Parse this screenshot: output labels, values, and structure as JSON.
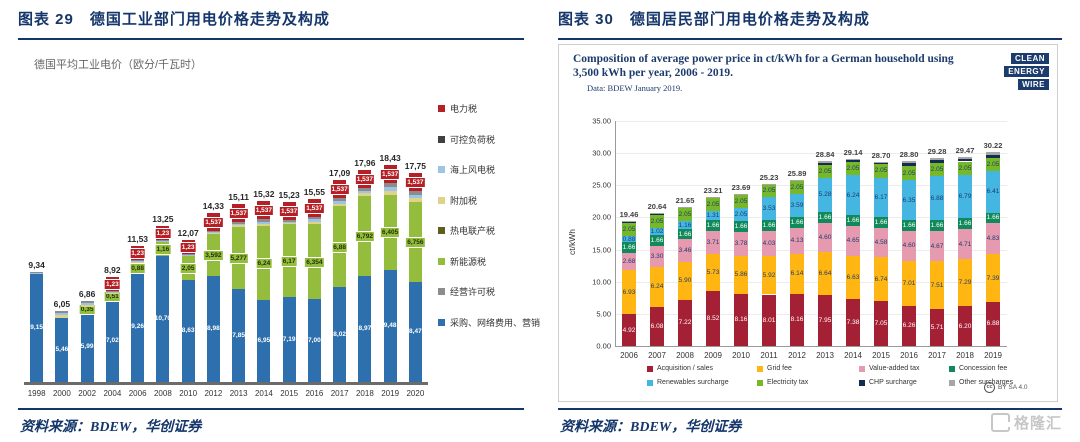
{
  "left_figure": {
    "header": "图表 29　德国工业部门用电价格走势及构成",
    "source": "资料来源：BDEW，华创证券",
    "legend": [
      {
        "label": "电力税",
        "color": "#b42025"
      },
      {
        "label": "可控负荷税",
        "color": "#404040"
      },
      {
        "label": "海上风电税",
        "color": "#9dc3e6"
      },
      {
        "label": "附加税",
        "color": "#ded489"
      },
      {
        "label": "热电联产税",
        "color": "#5f5f1d"
      },
      {
        "label": "新能源税",
        "color": "#94bd3d"
      },
      {
        "label": "经营许可税",
        "color": "#8c8c8c"
      },
      {
        "label": "采购、网络费用、营销",
        "color": "#2e6fad"
      }
    ]
  },
  "right_figure": {
    "header": "图表 30　德国居民部门用电价格走势及构成",
    "source": "资料来源：BDEW，华创证券",
    "logo_lines": [
      "CLEAN",
      "ENERGY",
      "WIRE"
    ],
    "license": "BY SA 4.0",
    "watermark": "格隆汇",
    "legend": [
      {
        "label": "Acquisition / sales",
        "color": "#a32035"
      },
      {
        "label": "Grid fee",
        "color": "#ffb612"
      },
      {
        "label": "Value-added tax",
        "color": "#e59ab0"
      },
      {
        "label": "Concession fee",
        "color": "#108a5a"
      },
      {
        "label": "Renewables surcharge",
        "color": "#45b5e2"
      },
      {
        "label": "Electricity tax",
        "color": "#77b82a"
      },
      {
        "label": "CHP surcharge",
        "color": "#132c54"
      },
      {
        "label": "Other surcharges",
        "color": "#a6a6a6"
      }
    ]
  },
  "chart_data": [
    {
      "type": "bar",
      "stacked": true,
      "title": "德国平均工业电价（欧分/千瓦时）",
      "categories": [
        "1998",
        "2000",
        "2002",
        "2004",
        "2006",
        "2008",
        "2010",
        "2012",
        "2013",
        "2014",
        "2015",
        "2016",
        "2017",
        "2018",
        "2019",
        "2020"
      ],
      "totals": [
        9.34,
        6.05,
        6.86,
        8.92,
        11.53,
        13.25,
        12.07,
        14.33,
        15.11,
        15.32,
        15.23,
        15.55,
        17.09,
        17.96,
        18.43,
        17.75
      ],
      "total_labels": [
        "9,34",
        "6,05",
        "6,86",
        "8,92",
        "11,53",
        "13,25",
        "12,07",
        "14,33",
        "15,11",
        "15,32",
        "15,23",
        "15,55",
        "17,09",
        "17,96",
        "18,43",
        "17,75"
      ],
      "ylim": [
        0,
        19
      ],
      "grid": false,
      "legend_position": "right",
      "series": [
        {
          "name": "采购、网络费用、营销",
          "color": "#2e6fad",
          "label_color": "#ffffff",
          "boxed": false,
          "values": [
            9.15,
            5.46,
            5.99,
            7.02,
            9.26,
            10.7,
            8.63,
            8.98,
            7.85,
            6.95,
            7.19,
            7.0,
            8.02,
            8.97,
            9.48,
            8.47
          ],
          "labels": [
            "9,15",
            "5,46",
            "5,99",
            "7,02",
            "9,26",
            "10,70",
            "8,63",
            "8,98",
            "7,85",
            "6,95",
            "7,19",
            "7,00",
            "8,02",
            "8,97",
            "9,48",
            "8,47"
          ]
        },
        {
          "name": "新能源税",
          "color": "#94bd3d",
          "label_color": "#1f3000",
          "boxed": true,
          "values": [
            0,
            0,
            0.35,
            0.51,
            0.88,
            1.16,
            2.05,
            3.592,
            5.277,
            6.24,
            6.17,
            6.354,
            6.88,
            6.792,
            6.405,
            6.756
          ],
          "labels": [
            "",
            "",
            "0,35",
            "0,51",
            "0,88",
            "1,16",
            "2,05",
            "3,592",
            "5,277",
            "6,24",
            "6,17",
            "6,354",
            "6,88",
            "6,792",
            "6,405",
            "6,756"
          ]
        },
        {
          "name": "电力税",
          "color": "#b42025",
          "label_color": "#ffffff",
          "boxed": true,
          "values": [
            0,
            0,
            0,
            1.23,
            1.23,
            1.23,
            1.23,
            1.537,
            1.537,
            1.537,
            1.537,
            1.537,
            1.537,
            1.537,
            1.537,
            1.537
          ],
          "labels": [
            "",
            "",
            "",
            "1,23",
            "1,23",
            "1,23",
            "1,23",
            "1,537",
            "1,537",
            "1,537",
            "1,537",
            "1,537",
            "1,537",
            "1,537",
            "1,537",
            "1,537"
          ]
        }
      ],
      "other_segment_colors": [
        "#ded489",
        "#9dc3e6",
        "#8c8c8c"
      ]
    },
    {
      "type": "bar",
      "stacked": true,
      "title": "Composition of average power price in ct/kWh for a German household using 3,500 kWh per year, 2006 - 2019.",
      "subtitle": "Data: BDEW January 2019.",
      "ylabel": "ct/kWh",
      "ylim": [
        0,
        35
      ],
      "ytick_labels": [
        "0.00",
        "5.00",
        "10.00",
        "15.00",
        "20.00",
        "25.00",
        "30.00",
        "35.00"
      ],
      "grid": true,
      "legend_position": "bottom",
      "categories": [
        "2006",
        "2007",
        "2008",
        "2009",
        "2010",
        "2011",
        "2012",
        "2013",
        "2014",
        "2015",
        "2016",
        "2017",
        "2018",
        "2019"
      ],
      "totals": [
        19.46,
        20.64,
        21.65,
        23.21,
        23.69,
        25.23,
        25.89,
        28.84,
        29.14,
        28.7,
        28.8,
        29.28,
        29.47,
        30.22
      ],
      "total_labels": [
        "19.46",
        "20.64",
        "21.65",
        "23.21",
        "23.69",
        "25.23",
        "25.89",
        "28.84",
        "29.14",
        "28.70",
        "28.80",
        "29.28",
        "29.47",
        "30.22"
      ],
      "series": [
        {
          "name": "Acquisition / sales",
          "color": "#a32035",
          "label_color": "#ffffff",
          "values": [
            4.92,
            6.08,
            7.22,
            8.52,
            8.16,
            8.01,
            8.16,
            7.95,
            7.38,
            7.05,
            6.26,
            5.71,
            6.2,
            6.88
          ]
        },
        {
          "name": "Grid fee",
          "color": "#ffb612",
          "label_color": "#1d3c6e",
          "values": [
            6.93,
            6.24,
            5.9,
            5.73,
            5.86,
            5.92,
            6.14,
            6.64,
            6.63,
            6.74,
            7.01,
            7.51,
            7.29,
            7.39
          ]
        },
        {
          "name": "Value-added tax",
          "color": "#e59ab0",
          "label_color": "#1d3c6e",
          "values": [
            2.68,
            3.3,
            3.46,
            3.71,
            3.78,
            4.03,
            4.13,
            4.6,
            4.65,
            4.58,
            4.6,
            4.67,
            4.71,
            4.83
          ]
        },
        {
          "name": "Concession fee",
          "color": "#108a5a",
          "label_color": "#ffffff",
          "values": [
            1.66,
            1.66,
            1.66,
            1.66,
            1.66,
            1.66,
            1.66,
            1.66,
            1.66,
            1.66,
            1.66,
            1.66,
            1.66,
            1.66
          ]
        },
        {
          "name": "Renewables surcharge",
          "color": "#45b5e2",
          "label_color": "#1d3c6e",
          "values": [
            0.88,
            1.02,
            1.16,
            1.31,
            2.05,
            3.53,
            3.59,
            5.28,
            6.24,
            6.17,
            6.35,
            6.88,
            6.79,
            6.41
          ]
        },
        {
          "name": "Electricity tax",
          "color": "#77b82a",
          "label_color": "#1d3c6e",
          "values": [
            2.05,
            2.05,
            2.05,
            2.05,
            2.05,
            2.05,
            2.05,
            2.05,
            2.05,
            2.05,
            2.05,
            2.05,
            2.05,
            2.05
          ]
        }
      ],
      "unlabeled_series": [
        {
          "name": "CHP surcharge",
          "color": "#132c54",
          "share": 0.55
        },
        {
          "name": "Other surcharges",
          "color": "#a6a6a6",
          "share": 0.45
        }
      ]
    }
  ]
}
